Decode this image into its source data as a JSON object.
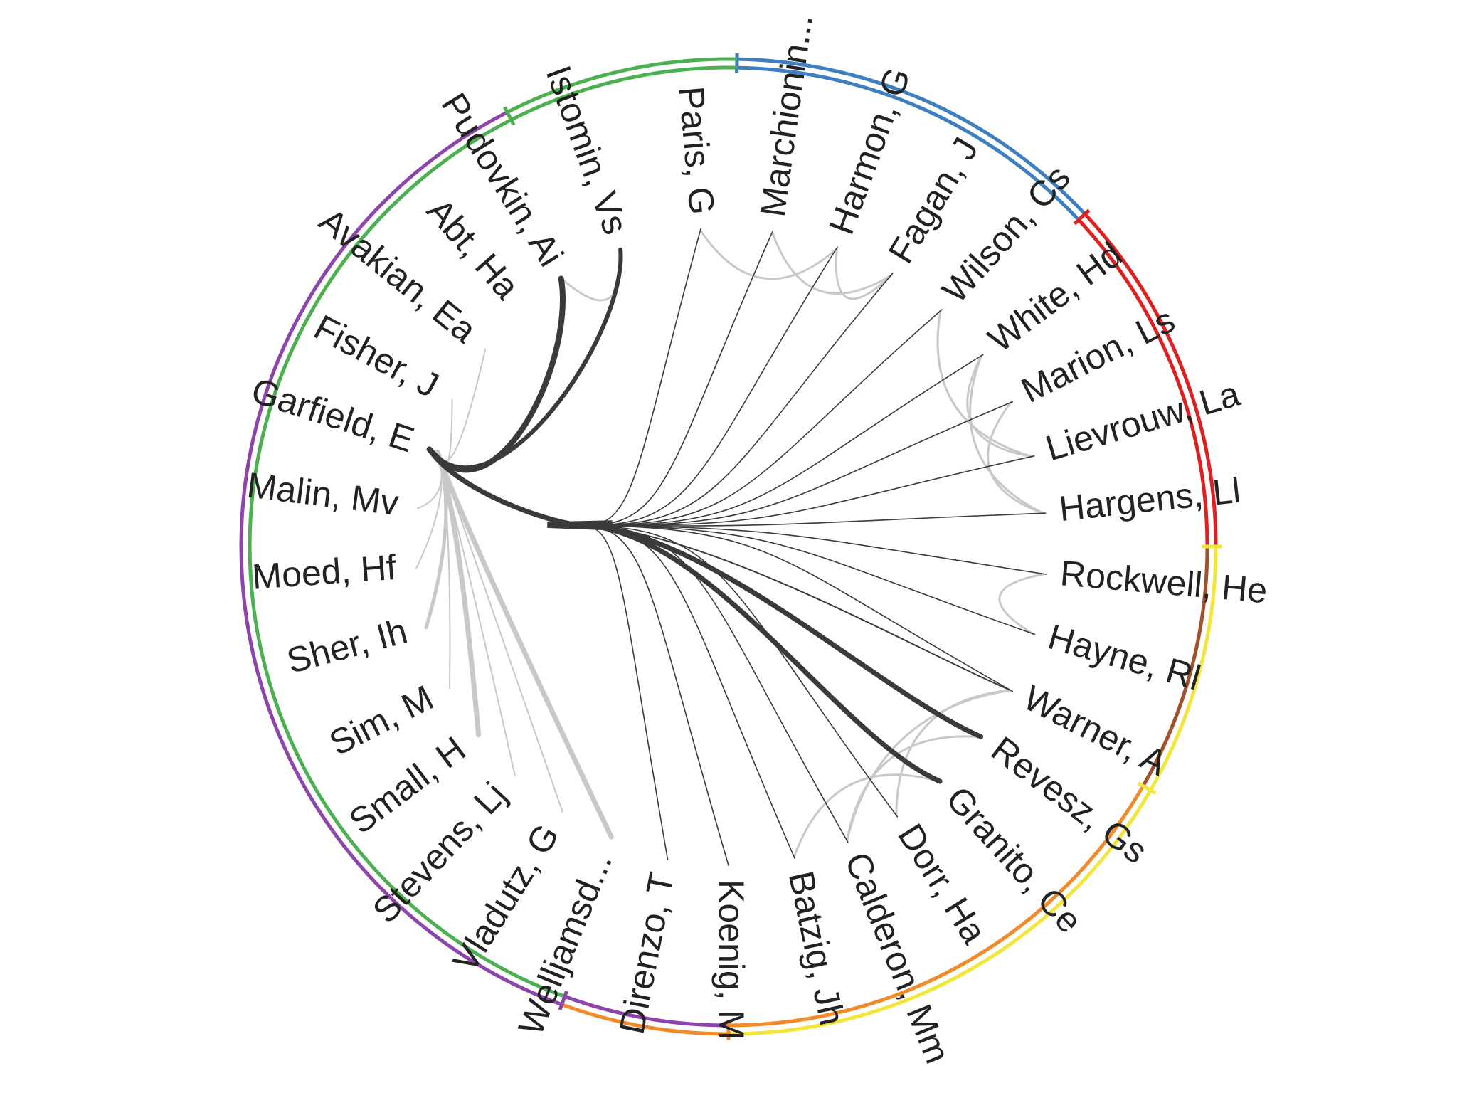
{
  "authors": [
    {
      "label": "Istomin, Vs",
      "deg": -110
    },
    {
      "label": "Paris, G",
      "deg": -95
    },
    {
      "label": "Marchionin...",
      "deg": -82
    },
    {
      "label": "Harmon, G",
      "deg": -70
    },
    {
      "label": "Fagan, J",
      "deg": -59
    },
    {
      "label": "Wilson, Cs",
      "deg": -48
    },
    {
      "label": "White, Hd",
      "deg": -37
    },
    {
      "label": "Marion, Ls",
      "deg": -27
    },
    {
      "label": "Lievrouw, La",
      "deg": -16.5
    },
    {
      "label": "Hargens, Ll",
      "deg": -6
    },
    {
      "label": "Rockwell, He",
      "deg": 5
    },
    {
      "label": "Hayne, Rl",
      "deg": 16
    },
    {
      "label": "Warner, A",
      "deg": 27
    },
    {
      "label": "Revesz, Gs",
      "deg": 37
    },
    {
      "label": "Granito, Ce",
      "deg": 48
    },
    {
      "label": "Dorr, Ha",
      "deg": 58
    },
    {
      "label": "Calderon, Mm",
      "deg": 68
    },
    {
      "label": "Batzig, Jh",
      "deg": 78
    },
    {
      "label": "Koenig, M",
      "deg": 90
    },
    {
      "label": "Direnzo, T",
      "deg": 101
    },
    {
      "label": "Welljamsd...",
      "deg": 112
    },
    {
      "label": "Vladutz, G",
      "deg": 122
    },
    {
      "label": "Stevens, Lj",
      "deg": 133
    },
    {
      "label": "Small, H",
      "deg": 143
    },
    {
      "label": "Sim, M",
      "deg": 153
    },
    {
      "label": "Sher, Ih",
      "deg": 165
    },
    {
      "label": "Moed, Hf",
      "deg": 176
    },
    {
      "label": "Malin, Mv",
      "deg": 187
    },
    {
      "label": "Garfield, E",
      "deg": 198
    },
    {
      "label": "Fisher, J",
      "deg": 208
    },
    {
      "label": "Avakian, Ea",
      "deg": 219
    },
    {
      "label": "Abt, Ha",
      "deg": 229
    },
    {
      "label": "Pudovkin, Ai",
      "deg": 238
    }
  ],
  "ring_segments": [
    {
      "outer": "#3d7fc1",
      "inner": "#3d7fc1",
      "start": -89,
      "end": -43
    },
    {
      "outer": "#e02020",
      "inner": "#e02020",
      "start": -43,
      "end": 0
    },
    {
      "outer": "#f2e63a",
      "inner": "#a0522d",
      "start": 0,
      "end": 30
    },
    {
      "outer": "#f2e63a",
      "inner": "#f28a2a",
      "start": 30,
      "end": 90
    },
    {
      "outer": "#f28a2a",
      "inner": "#8e44ad",
      "start": 90,
      "end": 110
    },
    {
      "outer": "#8e44ad",
      "inner": "#4caf50",
      "start": 110,
      "end": 243
    },
    {
      "outer": "#4caf50",
      "inner": "#4caf50",
      "start": 243,
      "end": 271
    }
  ],
  "colors": {
    "edge_dark": "#3a3a3a",
    "edge_light": "#c8c8c8",
    "label": "#222222"
  }
}
